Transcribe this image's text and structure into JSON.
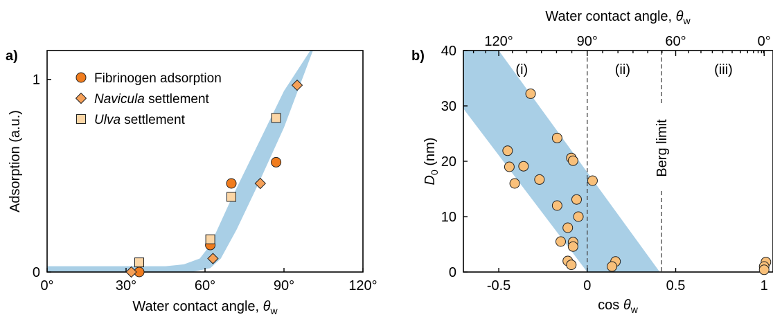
{
  "chart_data": [
    {
      "id": "a",
      "panel_label": "a)",
      "type": "scatter",
      "xlabel": "Water contact angle, ",
      "xlabel_symbol": "θ",
      "xlabel_sub": "w",
      "ylabel": "Adsorption (a.u.)",
      "xlim": [
        0,
        120
      ],
      "ylim": [
        0,
        1.15
      ],
      "xticks": [
        {
          "value": 0,
          "label": "0°"
        },
        {
          "value": 30,
          "label": "30°"
        },
        {
          "value": 60,
          "label": "60°"
        },
        {
          "value": 90,
          "label": "90°"
        },
        {
          "value": 120,
          "label": "120°"
        }
      ],
      "yticks": [
        {
          "value": 0,
          "label": "0"
        },
        {
          "value": 1,
          "label": "1"
        }
      ],
      "band": {
        "color": "#a9cfe6",
        "upper": [
          [
            0,
            0.03
          ],
          [
            45,
            0.03
          ],
          [
            52,
            0.04
          ],
          [
            58,
            0.07
          ],
          [
            62,
            0.14
          ],
          [
            70,
            0.38
          ],
          [
            80,
            0.66
          ],
          [
            90,
            0.94
          ],
          [
            100,
            1.15
          ]
        ],
        "lower": [
          [
            0,
            0.0
          ],
          [
            45,
            0.0
          ],
          [
            55,
            0.0
          ],
          [
            62,
            0.02
          ],
          [
            66,
            0.07
          ],
          [
            72,
            0.22
          ],
          [
            80,
            0.45
          ],
          [
            90,
            0.75
          ],
          [
            101,
            1.15
          ]
        ]
      },
      "legend": {
        "position": "top-left",
        "entries": [
          {
            "marker": "circle",
            "color": "#f07c1e",
            "text_before": "",
            "text_italic": "",
            "text_after": "Fibrinogen adsorption"
          },
          {
            "marker": "diamond",
            "color": "#f5a058",
            "text_before": "",
            "text_italic": "Navicula",
            "text_after": " settlement"
          },
          {
            "marker": "square",
            "color": "#fbd6a6",
            "text_before": "",
            "text_italic": "Ulva",
            "text_after": " settlement"
          }
        ]
      },
      "series": [
        {
          "name": "Fibrinogen adsorption",
          "marker": "circle",
          "color": "#f07c1e",
          "points": [
            [
              35,
              0.0
            ],
            [
              62,
              0.14
            ],
            [
              70,
              0.46
            ],
            [
              87,
              0.57
            ]
          ]
        },
        {
          "name": "Navicula settlement",
          "marker": "diamond",
          "color": "#f5a058",
          "points": [
            [
              32,
              0.0
            ],
            [
              63,
              0.07
            ],
            [
              81,
              0.46
            ],
            [
              95,
              0.97
            ]
          ]
        },
        {
          "name": "Ulva settlement",
          "marker": "square",
          "color": "#fbd6a6",
          "points": [
            [
              35,
              0.05
            ],
            [
              62,
              0.17
            ],
            [
              70,
              0.39
            ],
            [
              87,
              0.8
            ]
          ]
        }
      ]
    },
    {
      "id": "b",
      "panel_label": "b)",
      "type": "scatter",
      "xlabel": "cos ",
      "xlabel_symbol": "θ",
      "xlabel_sub": "w",
      "top_xlabel": "Water contact angle, ",
      "top_xlabel_symbol": "θ",
      "top_xlabel_sub": "w",
      "ylabel_symbol": "D",
      "ylabel_sub": "0",
      "ylabel_after": " (nm)",
      "xlim": [
        -0.7,
        1.05
      ],
      "ylim": [
        0,
        40
      ],
      "xticks": [
        {
          "value": -0.5,
          "label": "-0.5"
        },
        {
          "value": 0,
          "label": "0"
        },
        {
          "value": 0.5,
          "label": "0.5"
        },
        {
          "value": 1,
          "label": "1"
        }
      ],
      "yticks": [
        {
          "value": 0,
          "label": "0"
        },
        {
          "value": 10,
          "label": "10"
        },
        {
          "value": 20,
          "label": "20"
        },
        {
          "value": 30,
          "label": "30"
        },
        {
          "value": 40,
          "label": "40"
        }
      ],
      "top_ticks": [
        {
          "value": 120,
          "label": "120°"
        },
        {
          "value": 90,
          "label": "90°"
        },
        {
          "value": 60,
          "label": "60°"
        },
        {
          "value": 0,
          "label": "0°"
        }
      ],
      "top_minor_ticks": [
        130,
        125,
        115,
        110,
        105,
        100,
        95,
        85,
        80,
        75,
        70,
        65,
        55,
        50,
        45,
        40,
        35,
        30,
        25,
        20,
        15,
        10,
        5
      ],
      "band": {
        "color": "#a9cfe6",
        "polygon": [
          [
            -0.7,
            40
          ],
          [
            -0.5,
            40
          ],
          [
            0.41,
            0
          ],
          [
            0.0,
            0
          ],
          [
            -0.7,
            29.5
          ]
        ]
      },
      "vlines": [
        {
          "x": 0,
          "style": "dashed"
        },
        {
          "x": 0.42,
          "style": "dashed",
          "label": "Berg limit"
        }
      ],
      "regions": [
        {
          "label": "(i)",
          "x": -0.37
        },
        {
          "label": "(ii)",
          "x": 0.2
        },
        {
          "label": "(iii)",
          "x": 0.77
        }
      ],
      "series": [
        {
          "name": "D0",
          "marker": "circle",
          "color": "#f9c07a",
          "points": [
            [
              -0.32,
              32.2
            ],
            [
              -0.17,
              24.2
            ],
            [
              -0.45,
              21.9
            ],
            [
              -0.09,
              20.6
            ],
            [
              -0.08,
              20.1
            ],
            [
              -0.44,
              19.0
            ],
            [
              -0.36,
              19.1
            ],
            [
              0.03,
              16.5
            ],
            [
              -0.27,
              16.7
            ],
            [
              -0.41,
              16.0
            ],
            [
              -0.06,
              13.1
            ],
            [
              -0.17,
              12.0
            ],
            [
              -0.05,
              10.0
            ],
            [
              -0.11,
              8.0
            ],
            [
              -0.15,
              5.5
            ],
            [
              -0.08,
              5.4
            ],
            [
              -0.08,
              4.6
            ],
            [
              -0.11,
              2.0
            ],
            [
              -0.09,
              1.3
            ],
            [
              0.16,
              1.9
            ],
            [
              0.14,
              1.0
            ],
            [
              1.01,
              1.8
            ],
            [
              1.0,
              1.0
            ],
            [
              1.0,
              0.4
            ]
          ]
        }
      ]
    }
  ]
}
